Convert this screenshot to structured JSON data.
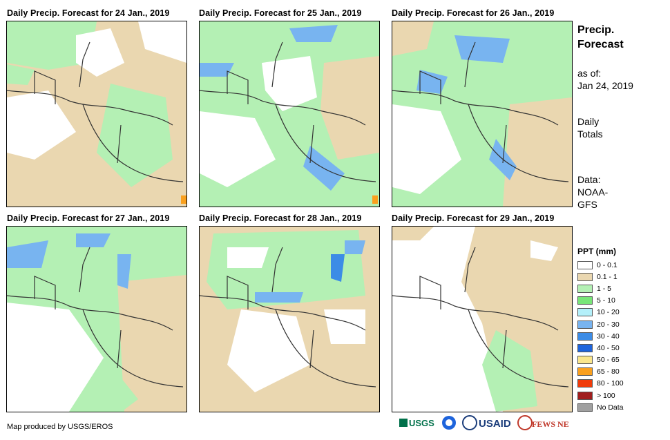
{
  "panels": [
    {
      "title": "Daily Precip. Forecast for 24 Jan., 2019"
    },
    {
      "title": "Daily Precip. Forecast for 25 Jan., 2019"
    },
    {
      "title": "Daily Precip. Forecast for 26 Jan., 2019"
    },
    {
      "title": "Daily Precip. Forecast for 27 Jan., 2019"
    },
    {
      "title": "Daily Precip. Forecast for 28 Jan., 2019"
    },
    {
      "title": "Daily Precip. Forecast for 29 Jan., 2019"
    }
  ],
  "sidebar": {
    "title": "Precip. Forecast",
    "as_of_label": "as of:",
    "as_of_date": "Jan 24, 2019",
    "totals": "Daily Totals",
    "data_source": "Data: NOAA-GFS"
  },
  "legend": {
    "title": "PPT (mm)",
    "items": [
      {
        "label": "0 - 0.1",
        "color": "#ffffff"
      },
      {
        "label": "0.1 - 1",
        "color": "#ead7b0"
      },
      {
        "label": "1 - 5",
        "color": "#b4f0b4"
      },
      {
        "label": "5 - 10",
        "color": "#78e678"
      },
      {
        "label": "10 - 20",
        "color": "#b4f0fa"
      },
      {
        "label": "20 - 30",
        "color": "#78b4f0"
      },
      {
        "label": "30 - 40",
        "color": "#3c8ce6"
      },
      {
        "label": "40 - 50",
        "color": "#1e64dc"
      },
      {
        "label": "50 - 65",
        "color": "#fae68c"
      },
      {
        "label": "65 - 80",
        "color": "#faa01e"
      },
      {
        "label": "80 - 100",
        "color": "#f03c0a"
      },
      {
        "label": "> 100",
        "color": "#a01e1e"
      },
      {
        "label": "No Data",
        "color": "#a0a0a0"
      }
    ]
  },
  "credit": "Map produced by USGS/EROS",
  "logos": [
    "USGS",
    "NOAA",
    "USAID",
    "FEWS NET"
  ]
}
